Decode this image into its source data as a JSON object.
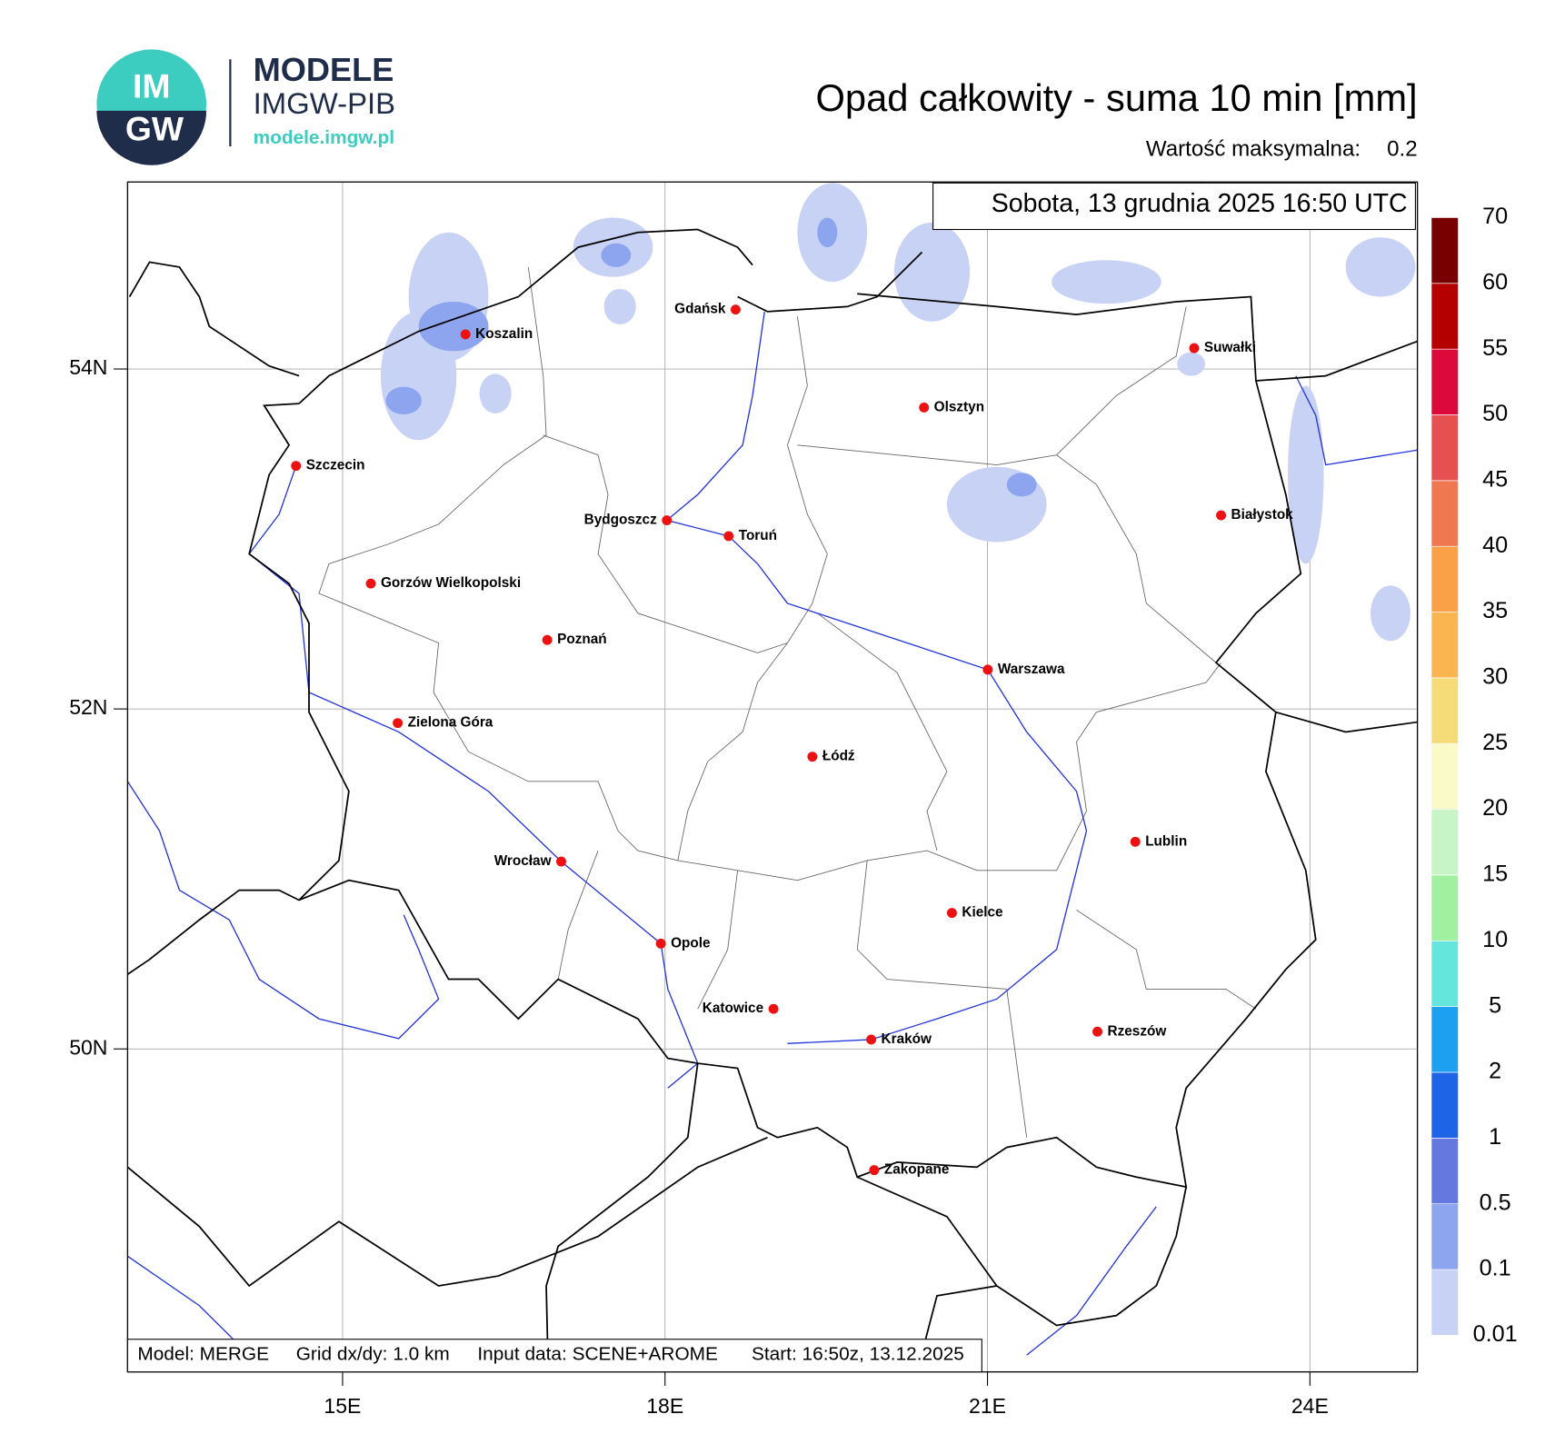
{
  "header": {
    "logo": {
      "top": "IM",
      "bottom": "GW"
    },
    "brand": "MODELE",
    "org": "IMGW-PIB",
    "url": "modele.imgw.pl"
  },
  "map": {
    "title": "Opad całkowity - suma 10 min [mm]",
    "max_label": "Wartość maksymalna:",
    "max_value": 0.2,
    "valid_time": "Sobota, 13 grudnia 2025 16:50 UTC",
    "xlim": [
      13,
      25
    ],
    "ylim": [
      48.1,
      55.1
    ],
    "xticks": [
      {
        "value": 15,
        "label": "15E"
      },
      {
        "value": 18,
        "label": "18E"
      },
      {
        "value": 21,
        "label": "21E"
      },
      {
        "value": 24,
        "label": "24E"
      }
    ],
    "yticks": [
      {
        "value": 54,
        "label": "54N"
      },
      {
        "value": 52,
        "label": "52N"
      },
      {
        "value": 50,
        "label": "50N"
      }
    ],
    "grid": true,
    "cities": [
      "Gdańsk",
      "Koszalin",
      "Suwałki",
      "Olsztyn",
      "Szczecin",
      "Bydgoszcz",
      "Toruń",
      "Białystok",
      "Gorzów Wielkopolski",
      "Poznań",
      "Warszawa",
      "Zielona Góra",
      "Łódź",
      "Lublin",
      "Wrocław",
      "Kielce",
      "Opole",
      "Katowice",
      "Kraków",
      "Rzeszów",
      "Zakopane"
    ],
    "footer": [
      "Model: MERGE",
      "Grid dx/dy: 1.0 km",
      "Input data: SCENE+AROME",
      "Start: 16:50z, 13.12.2025"
    ]
  },
  "legend": {
    "levels": [
      0.01,
      0.1,
      0.5,
      1,
      2,
      5,
      10,
      15,
      20,
      25,
      30,
      35,
      40,
      45,
      50,
      55,
      60,
      70
    ],
    "colors": [
      "#c8d2f5",
      "#8ca5ee",
      "#6478e0",
      "#1e64e6",
      "#1ea0f0",
      "#64e6dc",
      "#a0f0a0",
      "#c8f5c8",
      "#fafac8",
      "#f5dc78",
      "#fab450",
      "#faa046",
      "#f07850",
      "#e65050",
      "#dc0a3c",
      "#b40000",
      "#780000"
    ]
  }
}
